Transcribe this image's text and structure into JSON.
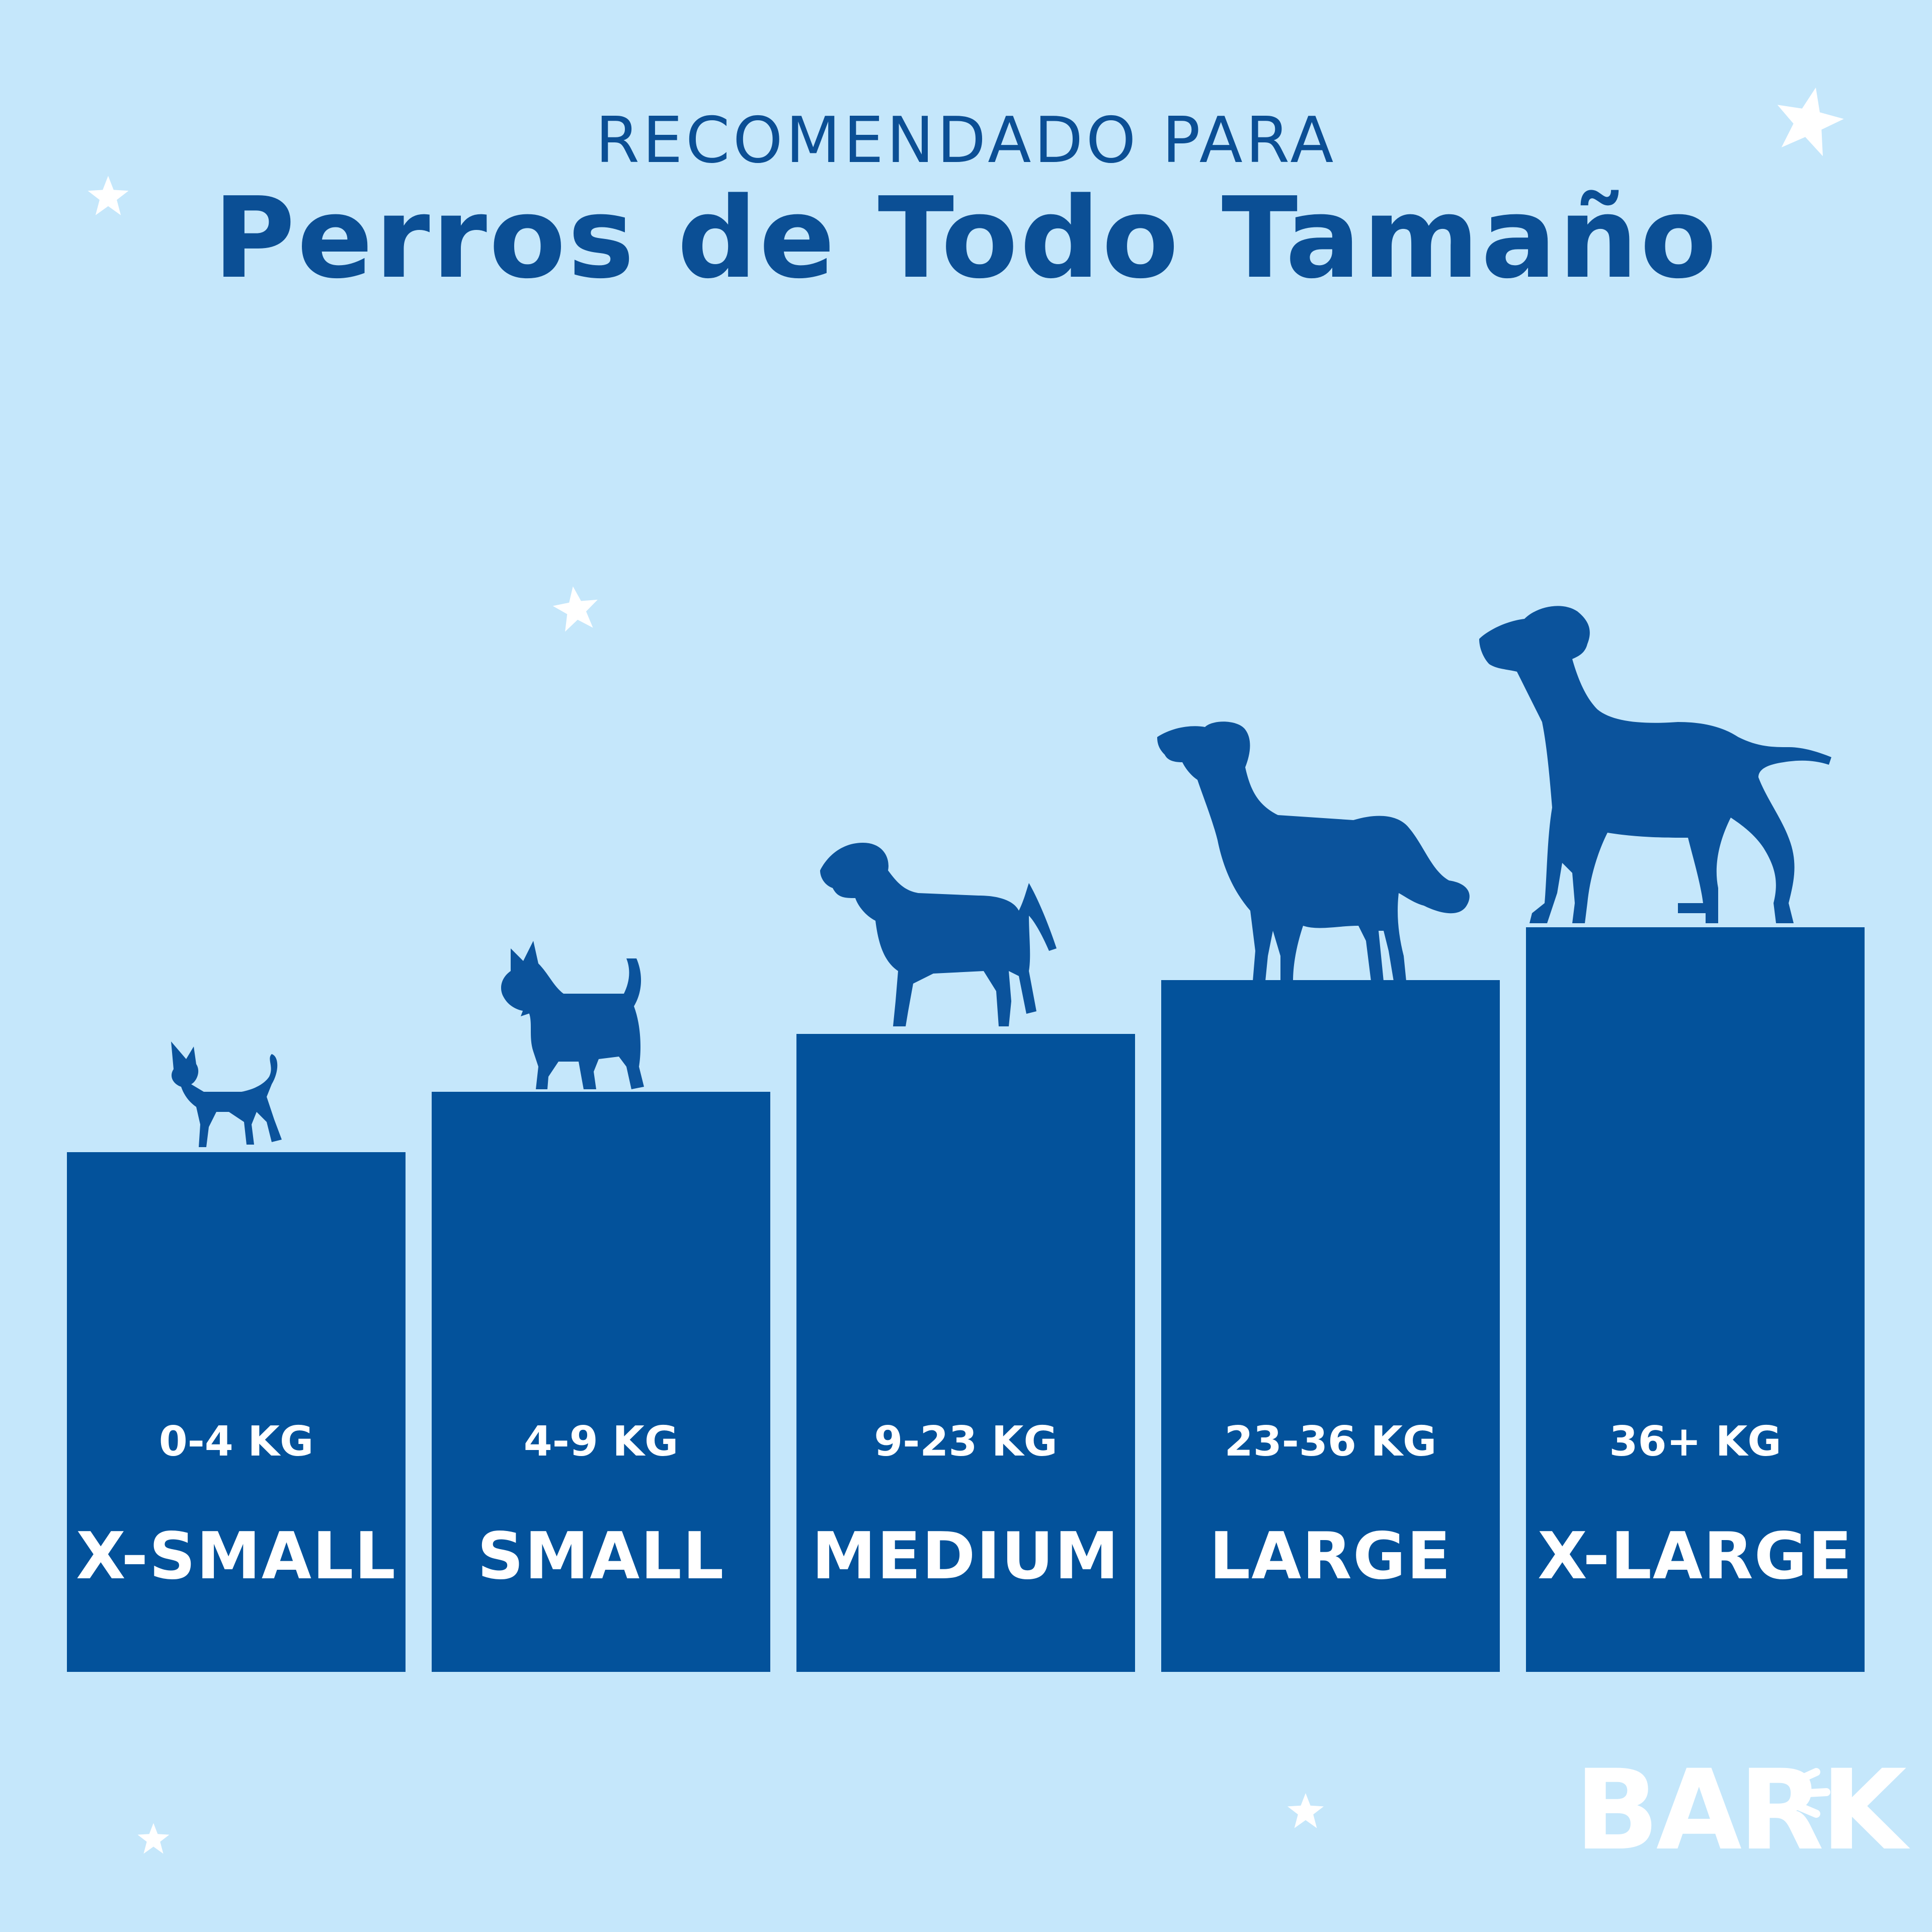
{
  "header": {
    "subtitle": "RECOMENDADO PARA",
    "title": "Perros de Todo Tamaño"
  },
  "sizes": [
    {
      "weight": "0-4 KG",
      "label": "X-SMALL"
    },
    {
      "weight": "4-9 KG",
      "label": "SMALL"
    },
    {
      "weight": "9-23 KG",
      "label": "MEDIUM"
    },
    {
      "weight": "23-36 KG",
      "label": "LARGE"
    },
    {
      "weight": "36+ KG",
      "label": "X-LARGE"
    }
  ],
  "brand": {
    "logo": "BARK"
  },
  "colors": {
    "background": "#c5e7fb",
    "step": "#03529b",
    "dog": "#0b539c",
    "text_light": "#ffffff",
    "title": "#0b4f95"
  },
  "icons": [
    "star-icon",
    "chihuahua-icon",
    "terrier-icon",
    "medium-dog-icon",
    "retriever-icon",
    "pointer-icon"
  ]
}
